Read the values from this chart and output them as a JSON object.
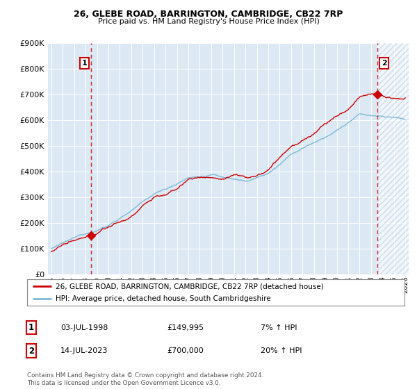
{
  "title_line1": "26, GLEBE ROAD, BARRINGTON, CAMBRIDGE, CB22 7RP",
  "title_line2": "Price paid vs. HM Land Registry's House Price Index (HPI)",
  "legend_label1": "26, GLEBE ROAD, BARRINGTON, CAMBRIDGE, CB22 7RP (detached house)",
  "legend_label2": "HPI: Average price, detached house, South Cambridgeshire",
  "sale1_date": "03-JUL-1998",
  "sale1_price": 149995,
  "sale1_price_str": "£149,995",
  "sale1_hpi": "7% ↑ HPI",
  "sale2_date": "14-JUL-2023",
  "sale2_price": 700000,
  "sale2_price_str": "£700,000",
  "sale2_hpi": "20% ↑ HPI",
  "hpi_color": "#7db8d8",
  "price_color": "#cc0000",
  "marker_color": "#cc0000",
  "vline_color": "#cc0000",
  "bg_color": "#dce9f5",
  "ymax": 900000,
  "ymin": 0,
  "footer": "Contains HM Land Registry data © Crown copyright and database right 2024.\nThis data is licensed under the Open Government Licence v3.0.",
  "start_year": 1995,
  "end_year": 2026,
  "sale1_year": 1998.5,
  "sale2_year": 2023.54
}
